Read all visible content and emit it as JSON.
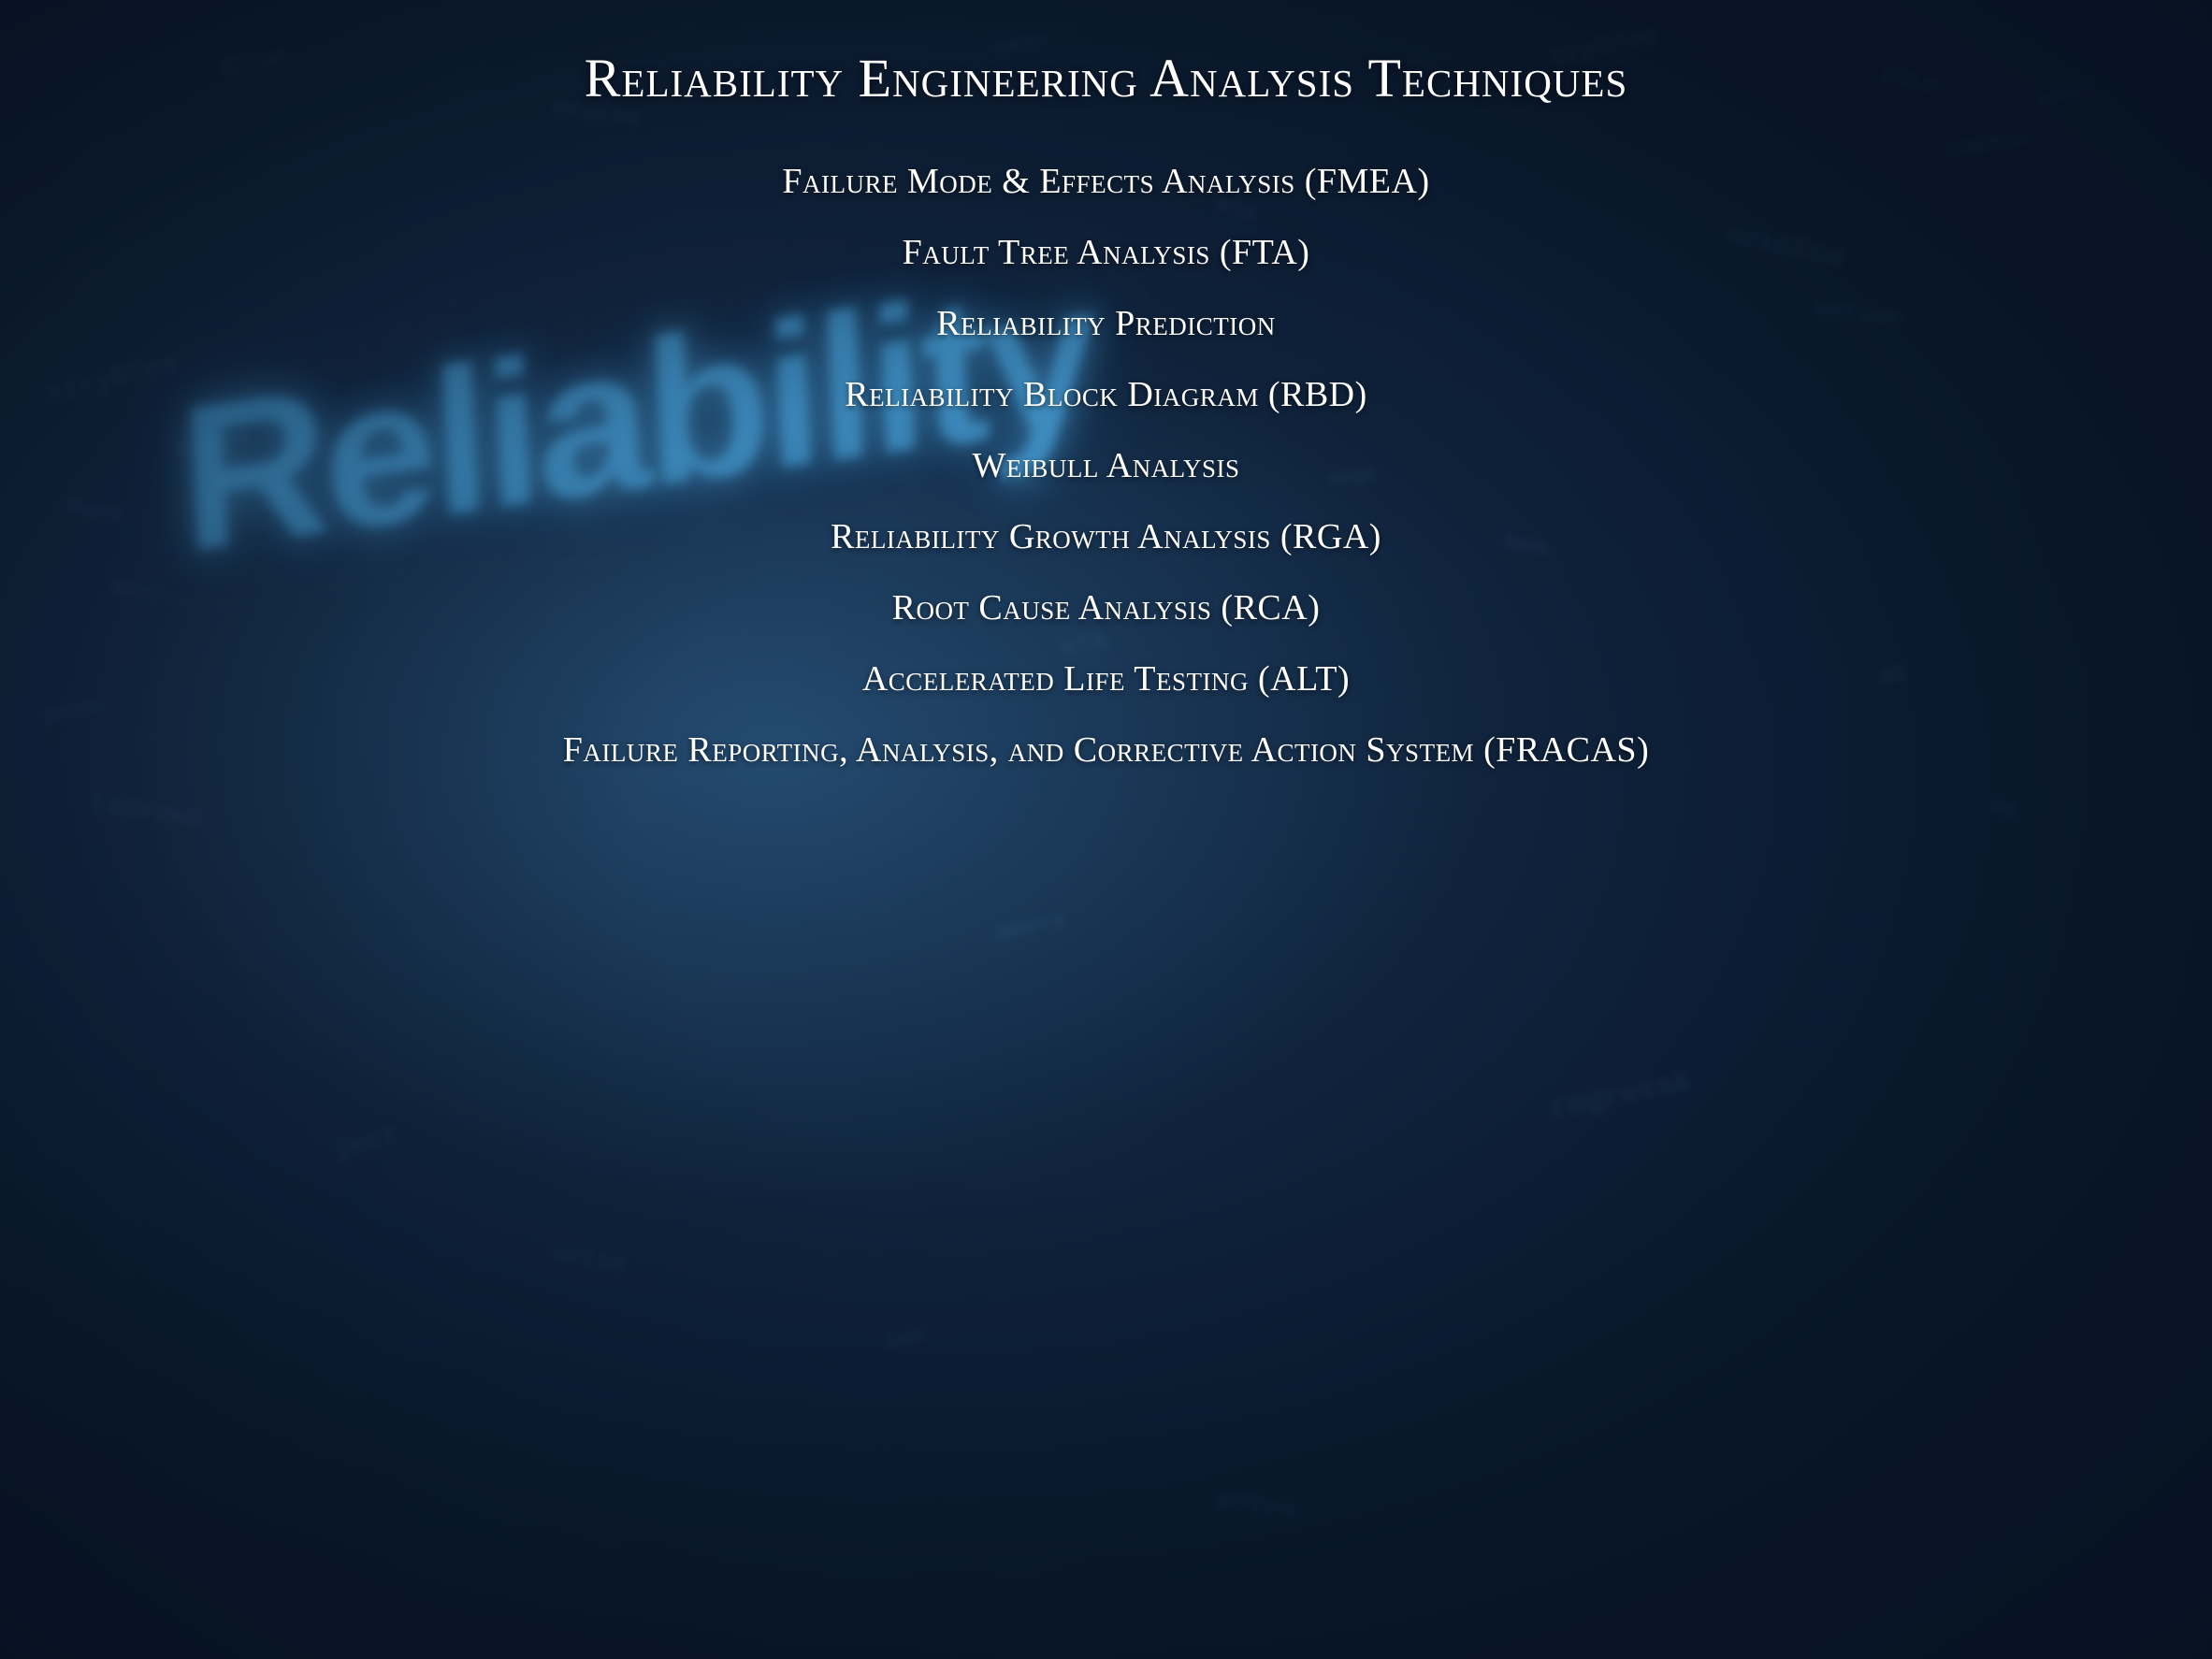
{
  "title": "Reliability Engineering Analysis Techniques",
  "items": [
    "Failure Mode & Effects Analysis (FMEA)",
    "Fault Tree Analysis (FTA)",
    "Reliability Prediction",
    "Reliability Block Diagram (RBD)",
    "Weibull Analysis",
    "Reliability Growth Analysis (RGA)",
    "Root Cause Analysis (RCA)",
    "Accelerated Life Testing (ALT)",
    "Failure Reporting, Analysis, and Corrective Action System (FRACAS)"
  ],
  "styling": {
    "title_fontsize": 58,
    "item_fontsize": 38,
    "text_color": "#ffffff",
    "background_gradient": [
      "#162840",
      "#0d1f35",
      "#0a1a30"
    ],
    "accent_glow_color": "#50b4f0",
    "font_variant": "small-caps",
    "item_gap": 32,
    "title_margin_bottom": 55
  },
  "background": {
    "main_word": "Reliability",
    "scatter_words": [
      "try$Tea",
      "r$Lo",
      "on&Man",
      "ork&Com",
      "ndust",
      "uction",
      "&Com",
      "gratio",
      "ontr",
      "stry$Tea",
      "Mark",
      "mwork",
      "&Str",
      "prov",
      "t&Growt",
      "mmerc",
      "Pla",
      "nage",
      "men",
      "&B",
      "eq",
      "wth",
      "ject",
      "uctio",
      "rogress&",
      "e?Trn",
      "ion"
    ]
  }
}
